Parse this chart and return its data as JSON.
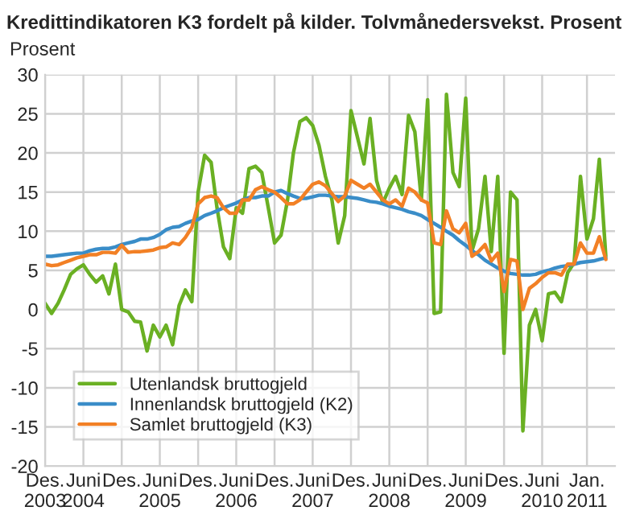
{
  "chart_data": {
    "type": "line",
    "title": "Kredittindikatoren K3 fordelt på kilder. Tolvmånedersvekst. Prosent",
    "ylabel": "Prosent",
    "x": [
      "2003-12",
      "2004-01",
      "2004-02",
      "2004-03",
      "2004-04",
      "2004-05",
      "2004-06",
      "2004-07",
      "2004-08",
      "2004-09",
      "2004-10",
      "2004-11",
      "2004-12",
      "2005-01",
      "2005-02",
      "2005-03",
      "2005-04",
      "2005-05",
      "2005-06",
      "2005-07",
      "2005-08",
      "2005-09",
      "2005-10",
      "2005-11",
      "2005-12",
      "2006-01",
      "2006-02",
      "2006-03",
      "2006-04",
      "2006-05",
      "2006-06",
      "2006-07",
      "2006-08",
      "2006-09",
      "2006-10",
      "2006-11",
      "2006-12",
      "2007-01",
      "2007-02",
      "2007-03",
      "2007-04",
      "2007-05",
      "2007-06",
      "2007-07",
      "2007-08",
      "2007-09",
      "2007-10",
      "2007-11",
      "2007-12",
      "2008-01",
      "2008-02",
      "2008-03",
      "2008-04",
      "2008-05",
      "2008-06",
      "2008-07",
      "2008-08",
      "2008-09",
      "2008-10",
      "2008-11",
      "2008-12",
      "2009-01",
      "2009-02",
      "2009-03",
      "2009-04",
      "2009-05",
      "2009-06",
      "2009-07",
      "2009-08",
      "2009-09",
      "2009-10",
      "2009-11",
      "2009-12",
      "2010-01",
      "2010-02",
      "2010-03",
      "2010-04",
      "2010-05",
      "2010-06",
      "2010-07",
      "2010-08",
      "2010-09",
      "2010-10",
      "2010-11",
      "2010-12",
      "2011-01",
      "2011-02",
      "2011-03",
      "2011-04"
    ],
    "series": [
      {
        "name": "Utenlandsk bruttogjeld",
        "color": "#6ab023",
        "values": [
          0.8,
          -0.5,
          0.8,
          2.5,
          4.5,
          5.2,
          5.7,
          4.5,
          3.5,
          4.3,
          2,
          5.8,
          0,
          -0.3,
          -1.5,
          -1.6,
          -5.3,
          -2,
          -3.5,
          -2,
          -4.5,
          0.5,
          2.5,
          1,
          15,
          19.7,
          18.8,
          13,
          8,
          6.5,
          13,
          12.3,
          18,
          18.3,
          17.5,
          13,
          8.5,
          9.5,
          14,
          20,
          24,
          24.5,
          23.5,
          21,
          17,
          14,
          8.5,
          12,
          25.4,
          22,
          18.6,
          24.4,
          16.5,
          13.6,
          15.5,
          17,
          14.7,
          24.8,
          22.7,
          14,
          26.8,
          -0.5,
          -0.3,
          27.5,
          17.5,
          15.7,
          27,
          7.5,
          10.3,
          17,
          7.4,
          17,
          -5.6,
          15,
          14,
          -15.5,
          -2,
          0,
          -4,
          2,
          2.2,
          1,
          4.7,
          6,
          17,
          9,
          11.6,
          19.2,
          6.8
        ]
      },
      {
        "name": "Innenlandsk bruttogjeld (K2)",
        "color": "#3a8dc8",
        "values": [
          6.8,
          6.8,
          6.9,
          7.0,
          7.1,
          7.2,
          7.2,
          7.5,
          7.7,
          7.8,
          7.8,
          8.0,
          8.3,
          8.5,
          8.7,
          9.0,
          9.0,
          9.2,
          9.6,
          10.2,
          10.5,
          10.6,
          11.0,
          11.3,
          11.5,
          12.0,
          12.3,
          12.6,
          13.0,
          13.3,
          13.6,
          14.0,
          14.3,
          14.3,
          14.5,
          14.5,
          15.0,
          15.2,
          14.8,
          14.5,
          14.2,
          14.2,
          14.4,
          14.6,
          14.6,
          14.5,
          14.4,
          14.4,
          14.3,
          14.2,
          14.0,
          13.8,
          13.7,
          13.5,
          13.2,
          13.0,
          12.8,
          12.5,
          12.3,
          12.0,
          11.5,
          11.0,
          10.5,
          10.0,
          9.5,
          8.8,
          8.2,
          7.5,
          7.0,
          6.3,
          5.8,
          5.3,
          4.9,
          4.6,
          4.5,
          4.4,
          4.4,
          4.5,
          4.8,
          5.0,
          5.3,
          5.5,
          5.6,
          5.8,
          6.0,
          6.1,
          6.2,
          6.4,
          6.6
        ]
      },
      {
        "name": "Samlet bruttogjeld (K3)",
        "color": "#f28025",
        "values": [
          5.8,
          5.6,
          5.7,
          6.0,
          6.3,
          6.6,
          6.8,
          7.0,
          7.0,
          7.3,
          7.3,
          7.2,
          8.2,
          7.3,
          7.4,
          7.4,
          7.5,
          7.6,
          7.9,
          8.0,
          8.5,
          8.3,
          9.2,
          10.5,
          13.5,
          14.3,
          14.5,
          14.3,
          13.0,
          12.3,
          12.3,
          14.0,
          14.0,
          15.3,
          15.7,
          15.3,
          15.0,
          14.3,
          13.5,
          13.5,
          14.0,
          15.0,
          16.0,
          16.3,
          15.8,
          14.8,
          13.8,
          14.5,
          16.5,
          16,
          15.5,
          16,
          15,
          14,
          13.5,
          14,
          13.2,
          15.5,
          15,
          14,
          13.6,
          8.5,
          8.3,
          12.6,
          10.3,
          9.8,
          11,
          6.8,
          7.4,
          8.3,
          6.2,
          7.2,
          2.3,
          6.4,
          6.2,
          0,
          2.7,
          3.3,
          4.1,
          4.7,
          4.7,
          4.4,
          5.8,
          5.8,
          8.5,
          7.2,
          7.2,
          9.3,
          6.4
        ]
      }
    ],
    "xlim": [
      "2003-12",
      "2011-05-15"
    ],
    "xticks": [
      {
        "value": "2003-12",
        "label": "Des.\n2003"
      },
      {
        "value": "2004-06",
        "label": "Juni\n2004"
      },
      {
        "value": "2004-12",
        "label": "Des."
      },
      {
        "value": "2005-06",
        "label": "Juni\n2005"
      },
      {
        "value": "2005-12",
        "label": "Des."
      },
      {
        "value": "2006-06",
        "label": "Juni\n2006"
      },
      {
        "value": "2006-12",
        "label": "Des."
      },
      {
        "value": "2007-06",
        "label": "Juni\n2007"
      },
      {
        "value": "2007-12",
        "label": "Des."
      },
      {
        "value": "2008-06",
        "label": "Juni\n2008"
      },
      {
        "value": "2008-12",
        "label": "Des."
      },
      {
        "value": "2009-06",
        "label": "Juni\n2009"
      },
      {
        "value": "2009-12",
        "label": "Des."
      },
      {
        "value": "2010-06",
        "label": "Juni\n2010"
      },
      {
        "value": "2011-01",
        "label": "Jan.\n2011"
      }
    ],
    "ylim": [
      -20,
      30
    ],
    "yticks": [
      -20,
      -15,
      -10,
      -5,
      0,
      5,
      10,
      15,
      20,
      25,
      30
    ],
    "grid": true,
    "legend": "bottom left"
  }
}
